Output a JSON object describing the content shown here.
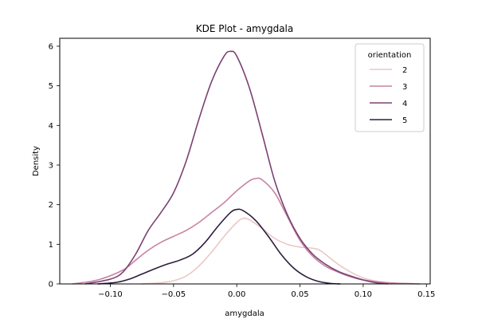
{
  "chart_data": {
    "type": "line",
    "title": "KDE Plot - amygdala",
    "xlabel": "amygdala",
    "ylabel": "Density",
    "xlim": [
      -0.14,
      0.153
    ],
    "ylim": [
      0,
      6.2
    ],
    "xticks": [
      -0.1,
      -0.05,
      0.0,
      0.05,
      0.1,
      0.15
    ],
    "xtick_labels": [
      "−0.10",
      "−0.05",
      "0.00",
      "0.05",
      "0.10",
      "0.15"
    ],
    "yticks": [
      0,
      1,
      2,
      3,
      4,
      5,
      6
    ],
    "ytick_labels": [
      "0",
      "1",
      "2",
      "3",
      "4",
      "5",
      "6"
    ],
    "grid": false,
    "legend": {
      "title": "orientation",
      "placement": "top-right"
    },
    "series": [
      {
        "name": "2",
        "color": "#ebc8c5",
        "x": [
          -0.075,
          -0.06,
          -0.05,
          -0.04,
          -0.03,
          -0.02,
          -0.01,
          0.0,
          0.005,
          0.01,
          0.02,
          0.03,
          0.04,
          0.05,
          0.06,
          0.065,
          0.07,
          0.08,
          0.09,
          0.1,
          0.11,
          0.12,
          0.14
        ],
        "y": [
          0.0,
          0.03,
          0.08,
          0.2,
          0.45,
          0.8,
          1.2,
          1.55,
          1.65,
          1.62,
          1.4,
          1.15,
          1.0,
          0.93,
          0.9,
          0.86,
          0.75,
          0.5,
          0.3,
          0.15,
          0.07,
          0.03,
          0.0
        ]
      },
      {
        "name": "3",
        "color": "#c783a2",
        "x": [
          -0.13,
          -0.11,
          -0.09,
          -0.08,
          -0.07,
          -0.06,
          -0.05,
          -0.04,
          -0.03,
          -0.02,
          -0.01,
          0.0,
          0.01,
          0.015,
          0.02,
          0.03,
          0.04,
          0.05,
          0.06,
          0.07,
          0.08,
          0.09,
          0.1,
          0.12,
          0.145
        ],
        "y": [
          0.0,
          0.1,
          0.35,
          0.6,
          0.85,
          1.05,
          1.2,
          1.35,
          1.55,
          1.8,
          2.05,
          2.35,
          2.6,
          2.66,
          2.63,
          2.3,
          1.7,
          1.1,
          0.7,
          0.45,
          0.3,
          0.18,
          0.1,
          0.03,
          0.0
        ]
      },
      {
        "name": "4",
        "color": "#7b4073",
        "x": [
          -0.12,
          -0.1,
          -0.09,
          -0.08,
          -0.07,
          -0.06,
          -0.05,
          -0.04,
          -0.03,
          -0.02,
          -0.01,
          -0.005,
          0.0,
          0.01,
          0.02,
          0.03,
          0.04,
          0.05,
          0.06,
          0.07,
          0.08,
          0.09,
          0.1,
          0.11,
          0.12
        ],
        "y": [
          0.0,
          0.12,
          0.3,
          0.75,
          1.35,
          1.8,
          2.3,
          3.1,
          4.15,
          5.1,
          5.75,
          5.87,
          5.75,
          4.95,
          3.8,
          2.6,
          1.75,
          1.15,
          0.75,
          0.5,
          0.32,
          0.2,
          0.1,
          0.03,
          0.0
        ]
      },
      {
        "name": "5",
        "color": "#2d1e3e",
        "x": [
          -0.11,
          -0.095,
          -0.085,
          -0.075,
          -0.065,
          -0.055,
          -0.045,
          -0.035,
          -0.025,
          -0.015,
          -0.005,
          0.0,
          0.005,
          0.015,
          0.025,
          0.035,
          0.045,
          0.055,
          0.065,
          0.075,
          0.082
        ],
        "y": [
          0.0,
          0.04,
          0.12,
          0.25,
          0.38,
          0.5,
          0.6,
          0.75,
          1.05,
          1.45,
          1.8,
          1.88,
          1.85,
          1.6,
          1.2,
          0.75,
          0.4,
          0.18,
          0.06,
          0.01,
          0.0
        ]
      }
    ]
  }
}
